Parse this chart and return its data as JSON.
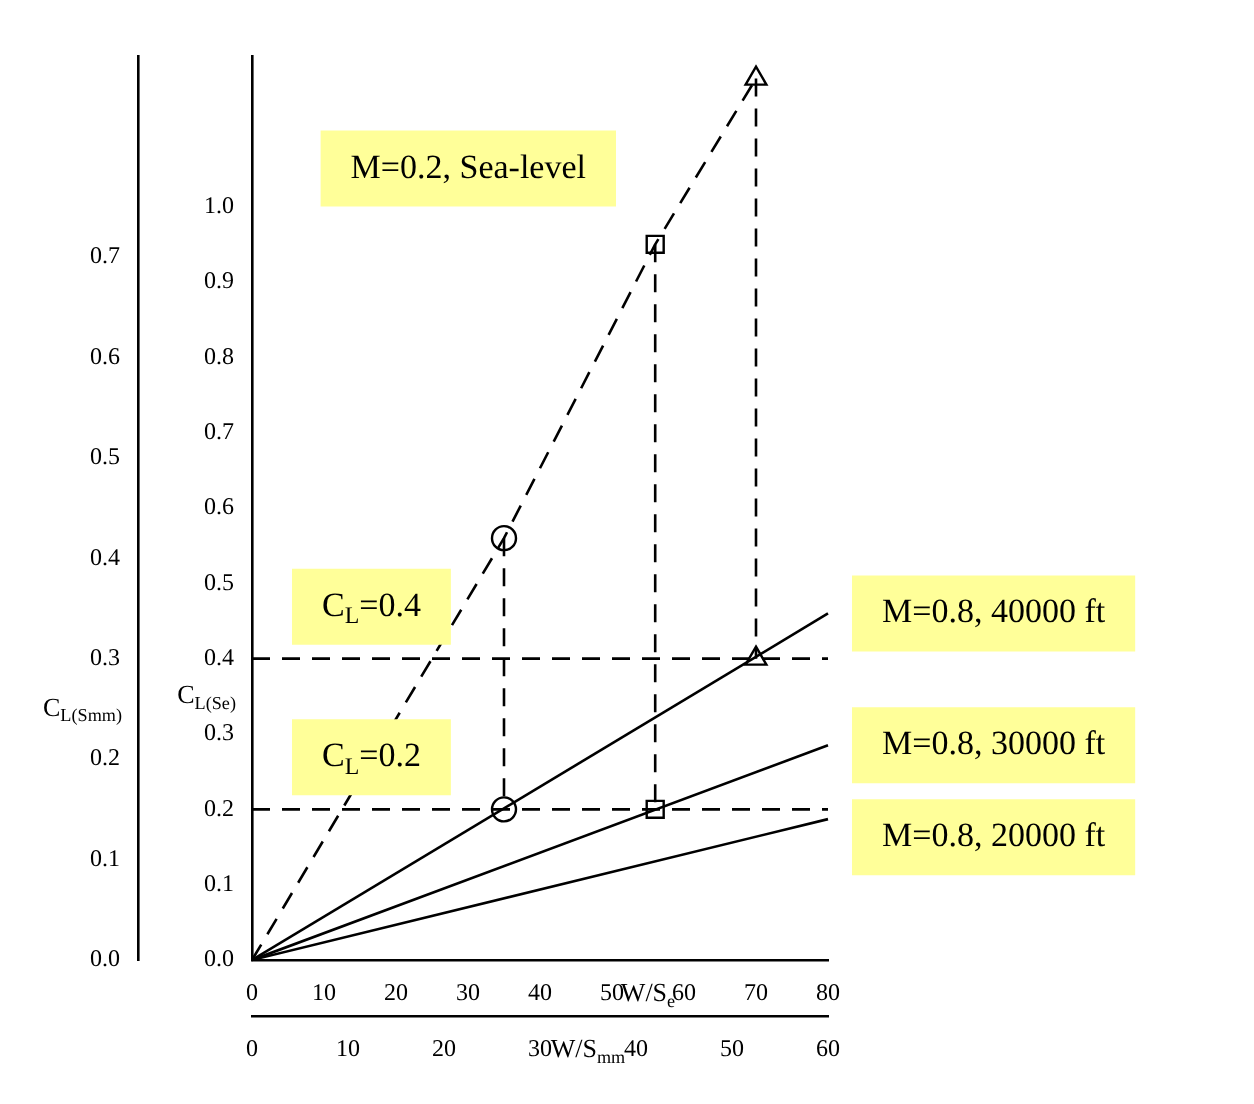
{
  "chart_data": {
    "type": "line",
    "xlabel": "W/S$_{e}$",
    "ylabel": "C$_{L(Se)}$",
    "x2label": "W/S$_{mm}$",
    "y2label": "C$_{L(Smm)}$",
    "xlim": [
      0,
      80
    ],
    "xticks": [
      0,
      10,
      20,
      30,
      40,
      50,
      60,
      70,
      80
    ],
    "x2lim": [
      0,
      60
    ],
    "x2ticks": [
      0,
      10,
      20,
      30,
      40,
      50,
      60
    ],
    "ylim": [
      0,
      1.2
    ],
    "yticks": [
      {
        "value": 0,
        "label": "0.0"
      },
      0.1,
      0.2,
      0.3,
      0.4,
      0.5,
      0.6,
      0.7,
      0.8,
      0.9,
      {
        "value": 1,
        "label": "1.0"
      }
    ],
    "y2lim": [
      0,
      0.9
    ],
    "y2ticks": [
      {
        "value": 0,
        "label": "0.0"
      },
      0.1,
      0.2,
      0.3,
      0.4,
      0.5,
      0.6,
      0.7
    ],
    "grid": false,
    "legend": false,
    "series": [
      {
        "name": "M=0.2, Sea-level",
        "color": "#000000",
        "line_style": "dashed",
        "x": [
          0,
          35,
          56,
          70
        ],
        "values": [
          0,
          0.56,
          0.95,
          1.17
        ]
      },
      {
        "name": "M=0.8, 40000 ft",
        "color": "#000000",
        "line_style": "solid",
        "marker": "none",
        "x": [
          0,
          80
        ],
        "values": [
          0,
          0.46
        ]
      },
      {
        "name": "M=0.8, 30000 ft",
        "color": "#000000",
        "line_style": "solid",
        "marker": "none",
        "x": [
          0,
          80
        ],
        "values": [
          0,
          0.285
        ]
      },
      {
        "name": "M=0.8, 20000 ft",
        "color": "#000000",
        "line_style": "solid",
        "marker": "none",
        "x": [
          0,
          80
        ],
        "values": [
          0,
          0.187
        ]
      },
      {
        "color": "#000000",
        "line_style": "dashed",
        "marker": "circle",
        "x": [
          35,
          35
        ],
        "values": [
          0.56,
          0.2
        ]
      },
      {
        "color": "#000000",
        "line_style": "dashed",
        "marker": "square",
        "x": [
          56,
          56
        ],
        "values": [
          0.95,
          0.2
        ]
      },
      {
        "color": "#000000",
        "line_style": "dashed",
        "marker": "triangle",
        "x": [
          70,
          70
        ],
        "values": [
          1.17,
          0.4
        ]
      }
    ],
    "ref_lines": [
      {
        "axis": "y",
        "value": 0.4,
        "label": "C$_{L}$=0.4",
        "color": "#000000",
        "line_style": "dashed"
      },
      {
        "axis": "y",
        "value": 0.2,
        "label": "C$_{L}$=0.2",
        "color": "#000000",
        "line_style": "dashed"
      }
    ]
  }
}
